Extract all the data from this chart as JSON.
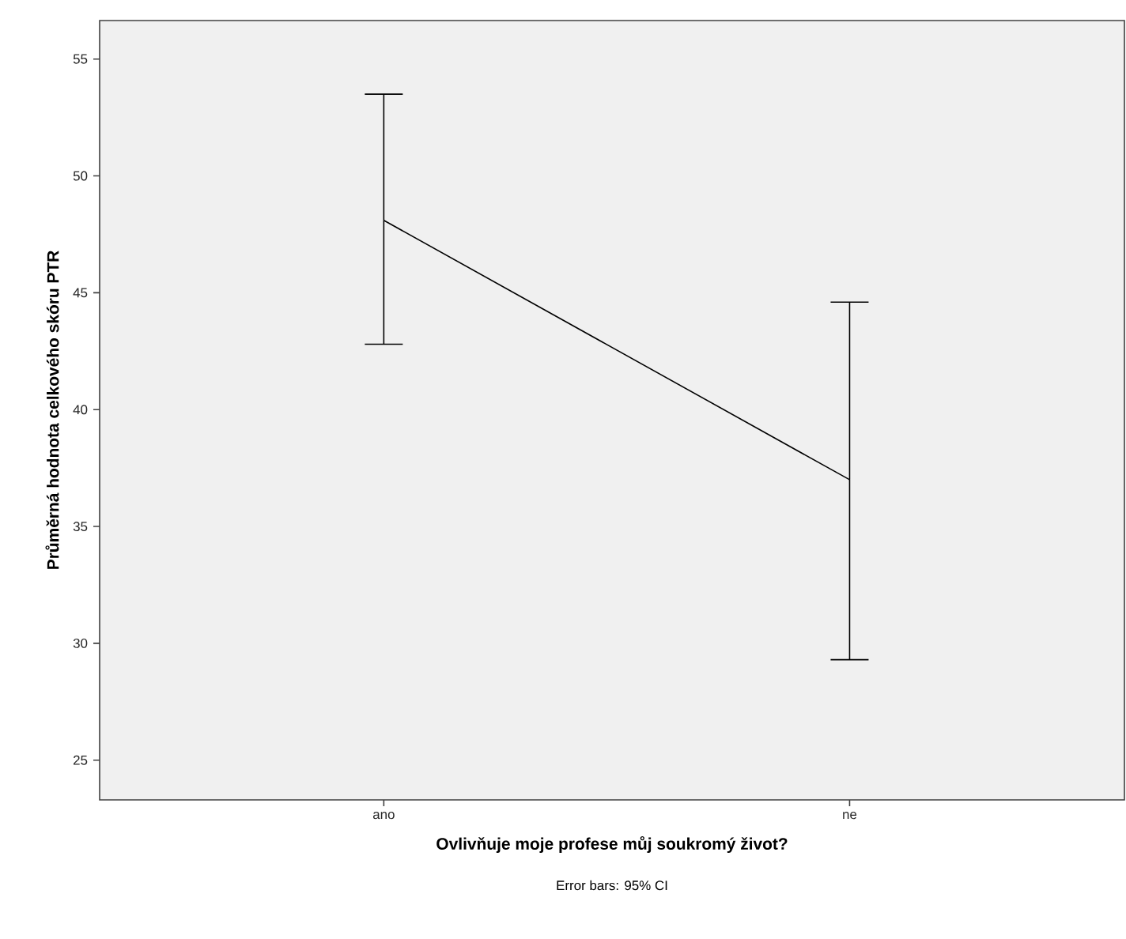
{
  "chart_data": {
    "type": "line",
    "xlabel": "Ovlivňuje moje profese můj soukromý život?",
    "ylabel": "Průměrná hodnota celkového skóru PTR",
    "categories": [
      "ano",
      "ne"
    ],
    "values": [
      48.1,
      37.0
    ],
    "errors": [
      [
        42.8,
        53.5
      ],
      [
        29.3,
        44.6
      ]
    ],
    "color": "#000000",
    "ylim": [
      23.3,
      56.65
    ],
    "yticks": [
      25,
      30,
      35,
      40,
      45,
      50,
      55
    ],
    "grid": false,
    "marker": "none",
    "line_style": "solid",
    "annotations": [
      "Error bars: 95% CI"
    ]
  }
}
